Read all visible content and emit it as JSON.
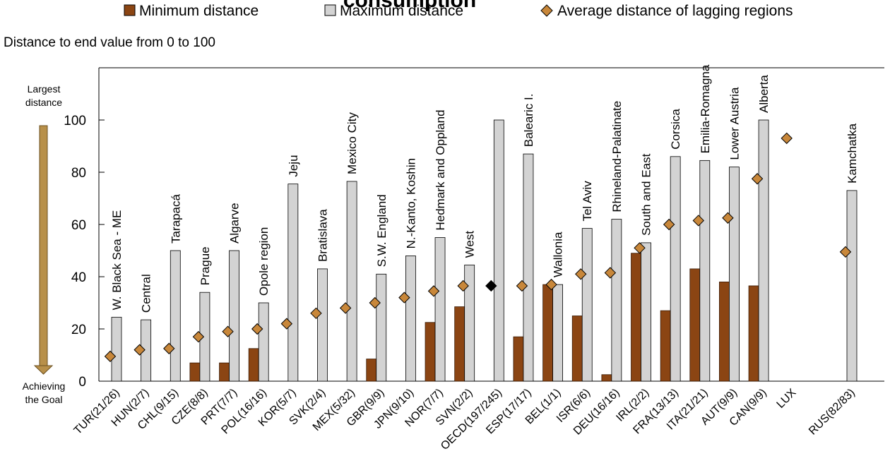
{
  "chart_data": {
    "type": "bar",
    "title": "consumption",
    "subtitle": "Distance to end value from 0 to 100",
    "y_annotation_top": [
      "Largest",
      "distance"
    ],
    "y_annotation_bottom": [
      "Achieving",
      "the Goal"
    ],
    "ylim": [
      0,
      115
    ],
    "yticks": [
      0,
      20,
      40,
      60,
      80,
      100
    ],
    "grid": false,
    "legend_position": "top",
    "legend": {
      "min_label": "Minimum distance",
      "max_label": "Maximum distance",
      "avg_label": "Average distance of lagging regions"
    },
    "colors": {
      "min": "#8B4513",
      "max": "#D3D3D3",
      "avg": "#C8873A",
      "oecd_marker": "#000000",
      "arrow": "#B8904A"
    },
    "categories": [
      "TUR(21/26)",
      "HUN(2/7)",
      "CHL(9/15)",
      "CZE(8/8)",
      "PRT(7/7)",
      "POL(16/16)",
      "KOR(5/7)",
      "SVK(2/4)",
      "MEX(5/32)",
      "GBR(9/9)",
      "JPN(9/10)",
      "NOR(7/7)",
      "SVN(2/2)",
      "OECD(197/245)",
      "ESP(17/17)",
      "BEL(1/1)",
      "ISR(6/6)",
      "DEU(16/16)",
      "IRL(2/2)",
      "FRA(13/13)",
      "ITA(21/21)",
      "AUT(9/9)",
      "CAN(9/9)",
      "LUX",
      "",
      "RUS(82/83)"
    ],
    "series": [
      {
        "name": "Minimum distance",
        "values": [
          0,
          0,
          0,
          7,
          7,
          12.5,
          0,
          0,
          0,
          8.5,
          0,
          22.5,
          28.5,
          null,
          17,
          37,
          25,
          2.5,
          49,
          27,
          43,
          38,
          36.5,
          null,
          null,
          0
        ]
      },
      {
        "name": "Maximum distance",
        "values": [
          24.5,
          23.5,
          50,
          34,
          50,
          30,
          75.5,
          43,
          76.5,
          41,
          48,
          55,
          44.5,
          100,
          87,
          37,
          58.5,
          62,
          53,
          86,
          84.5,
          82,
          100,
          null,
          null,
          73
        ]
      },
      {
        "name": "Average distance of lagging regions",
        "values": [
          9.5,
          12,
          12.5,
          17,
          19,
          20,
          22,
          26,
          28,
          30,
          32,
          34.5,
          36.5,
          36.5,
          36.5,
          37,
          41,
          41.5,
          51,
          60,
          61.5,
          62.5,
          77.5,
          93,
          null,
          49.5
        ]
      }
    ],
    "annotations": [
      "W. Black Sea - ME",
      "Central",
      "Tarapacá",
      "Prague",
      "Algarve",
      "Opole region",
      "Jeju",
      "Bratislava",
      "Mexico City",
      "S.W. England",
      "N.-Kanto, Koshin",
      "Hedmark and Oppland",
      "West",
      "",
      "Balearic I.",
      "Wallonia",
      "Tel Aviv",
      "Rhineland-Palatinate",
      "South and East",
      "Corsica",
      "Emilia-Romagna",
      "Lower Austria",
      "Alberta",
      "",
      "",
      "Kamchatka"
    ]
  }
}
